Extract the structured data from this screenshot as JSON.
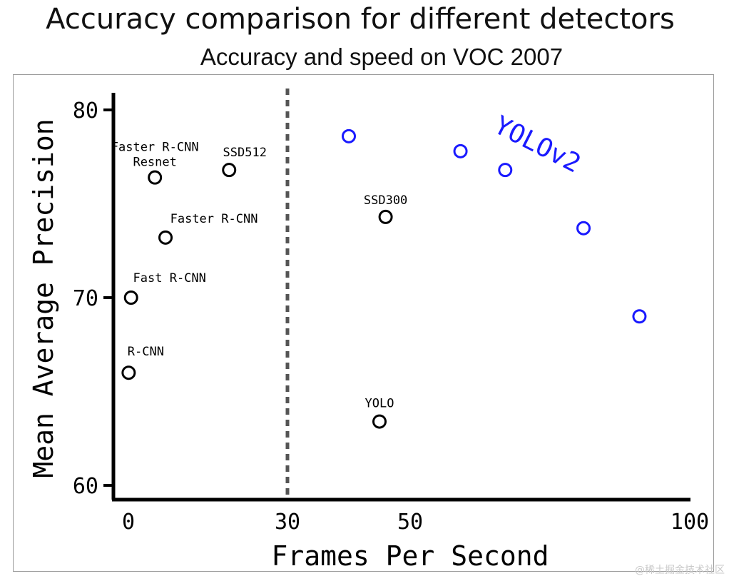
{
  "header": {
    "title": "Accuracy comparison for different detectors"
  },
  "watermark": "@稀土掘金技术社区",
  "chart_data": {
    "type": "scatter",
    "title": "Accuracy and speed on VOC 2007",
    "xlabel": "Frames Per Second",
    "ylabel": "Mean Average Precision",
    "x_ticks": [
      0,
      30,
      50,
      100
    ],
    "y_ticks": [
      60,
      70,
      80
    ],
    "reference_line": {
      "x": 30,
      "style": "dashed"
    },
    "colors": {
      "baseline": "#000000",
      "yolov2": "#1a1aff",
      "reference_line": "#555555"
    },
    "series": [
      {
        "name": "",
        "color": "#000000",
        "points": [
          {
            "label": "R-CNN",
            "x": 0.05,
            "y": 66.0
          },
          {
            "label": "Fast R-CNN",
            "x": 0.5,
            "y": 70.0
          },
          {
            "label": "Faster R-CNN",
            "x": 7,
            "y": 73.2
          },
          {
            "label": "Faster R-CNN Resnet",
            "x": 5,
            "y": 76.4
          },
          {
            "label": "SSD512",
            "x": 19,
            "y": 76.8
          },
          {
            "label": "SSD300",
            "x": 46,
            "y": 74.3
          },
          {
            "label": "YOLO",
            "x": 45,
            "y": 63.4
          }
        ]
      },
      {
        "name": "YOLOv2",
        "color": "#1a1aff",
        "points": [
          {
            "x": 40,
            "y": 78.6
          },
          {
            "x": 59,
            "y": 77.8
          },
          {
            "x": 67,
            "y": 76.8
          },
          {
            "x": 81,
            "y": 73.7
          },
          {
            "x": 91,
            "y": 69.0
          }
        ]
      }
    ]
  }
}
